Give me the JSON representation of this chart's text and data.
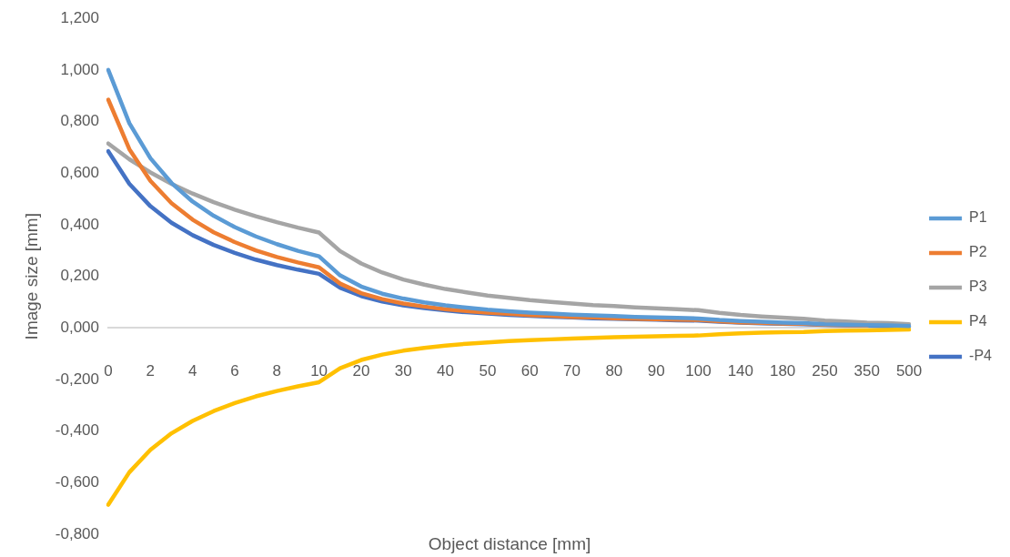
{
  "chart_data": {
    "type": "line",
    "xlabel": "Object distance [mm]",
    "ylabel": "Image size [mm]",
    "categories": [
      "0",
      null,
      "2",
      null,
      "4",
      null,
      "6",
      null,
      "8",
      null,
      "10",
      null,
      "20",
      null,
      "30",
      null,
      "40",
      null,
      "50",
      null,
      "60",
      null,
      "70",
      null,
      "80",
      null,
      "90",
      null,
      "100",
      null,
      "140",
      null,
      "180",
      null,
      "250",
      null,
      "350",
      null,
      "500"
    ],
    "series": [
      {
        "name": "P1",
        "color": "#5b9bd5",
        "values": [
          1.0,
          0.794,
          0.658,
          0.562,
          0.49,
          0.435,
          0.391,
          0.355,
          0.325,
          0.299,
          0.278,
          0.204,
          0.161,
          0.133,
          0.114,
          0.099,
          0.088,
          0.079,
          0.071,
          0.065,
          0.06,
          0.056,
          0.052,
          0.049,
          0.046,
          0.043,
          0.041,
          0.039,
          0.037,
          0.031,
          0.027,
          0.024,
          0.021,
          0.019,
          0.015,
          0.013,
          0.011,
          0.01,
          0.008
        ]
      },
      {
        "name": "P2",
        "color": "#ed7d31",
        "values": [
          0.885,
          0.693,
          0.57,
          0.484,
          0.42,
          0.371,
          0.333,
          0.301,
          0.275,
          0.254,
          0.235,
          0.172,
          0.135,
          0.112,
          0.095,
          0.083,
          0.073,
          0.066,
          0.06,
          0.055,
          0.05,
          0.047,
          0.043,
          0.041,
          0.038,
          0.036,
          0.034,
          0.032,
          0.031,
          0.026,
          0.022,
          0.02,
          0.017,
          0.016,
          0.013,
          0.011,
          0.009,
          null,
          null
        ]
      },
      {
        "name": "P3",
        "color": "#a5a5a5",
        "values": [
          0.715,
          0.654,
          0.603,
          0.559,
          0.521,
          0.488,
          0.459,
          0.433,
          0.41,
          0.389,
          0.37,
          0.298,
          0.25,
          0.215,
          0.188,
          0.168,
          0.151,
          0.138,
          0.126,
          0.117,
          0.108,
          0.101,
          0.095,
          0.089,
          0.085,
          0.08,
          0.076,
          0.073,
          0.069,
          0.059,
          0.051,
          0.045,
          0.04,
          0.036,
          0.029,
          0.025,
          0.021,
          0.019,
          0.015
        ]
      },
      {
        "name": "P4",
        "color": "#ffc000",
        "values": [
          -0.685,
          -0.559,
          -0.472,
          -0.408,
          -0.36,
          -0.322,
          -0.291,
          -0.265,
          -0.244,
          -0.226,
          -0.21,
          -0.156,
          -0.124,
          -0.103,
          -0.088,
          -0.077,
          -0.068,
          -0.061,
          -0.056,
          -0.051,
          -0.047,
          -0.044,
          -0.041,
          -0.038,
          -0.036,
          -0.034,
          -0.032,
          -0.03,
          -0.029,
          -0.024,
          -0.021,
          -0.018,
          -0.016,
          -0.015,
          -0.012,
          -0.01,
          -0.009,
          -0.007,
          -0.006
        ]
      },
      {
        "name": "-P4",
        "color": "#4472c4",
        "values": [
          0.685,
          0.559,
          0.472,
          0.408,
          0.36,
          0.322,
          0.291,
          0.265,
          0.244,
          0.226,
          0.21,
          0.156,
          0.124,
          0.103,
          0.088,
          0.077,
          0.068,
          0.061,
          0.056,
          0.051,
          0.047,
          0.044,
          0.041,
          0.038,
          0.036,
          0.034,
          0.032,
          0.03,
          0.029,
          0.024,
          0.021,
          0.018,
          0.016,
          0.015,
          0.012,
          0.01,
          0.009,
          0.007,
          0.006
        ]
      }
    ],
    "ylim": [
      -0.8,
      1.2
    ],
    "yticks": [
      {
        "value": -0.8,
        "label": "-0,800"
      },
      {
        "value": -0.6,
        "label": "-0,600"
      },
      {
        "value": -0.4,
        "label": "-0,400"
      },
      {
        "value": -0.2,
        "label": "-0,200"
      },
      {
        "value": 0,
        "label": "0,000"
      },
      {
        "value": 0.2,
        "label": "0,200"
      },
      {
        "value": 0.4,
        "label": "0,400"
      },
      {
        "value": 0.6,
        "label": "0,600"
      },
      {
        "value": 0.8,
        "label": "0,800"
      },
      {
        "value": 1.0,
        "label": "1,000"
      },
      {
        "value": 1.2,
        "label": "1,200"
      }
    ],
    "grid": false,
    "legend": "right",
    "marker": "none",
    "line_style": "solid"
  }
}
